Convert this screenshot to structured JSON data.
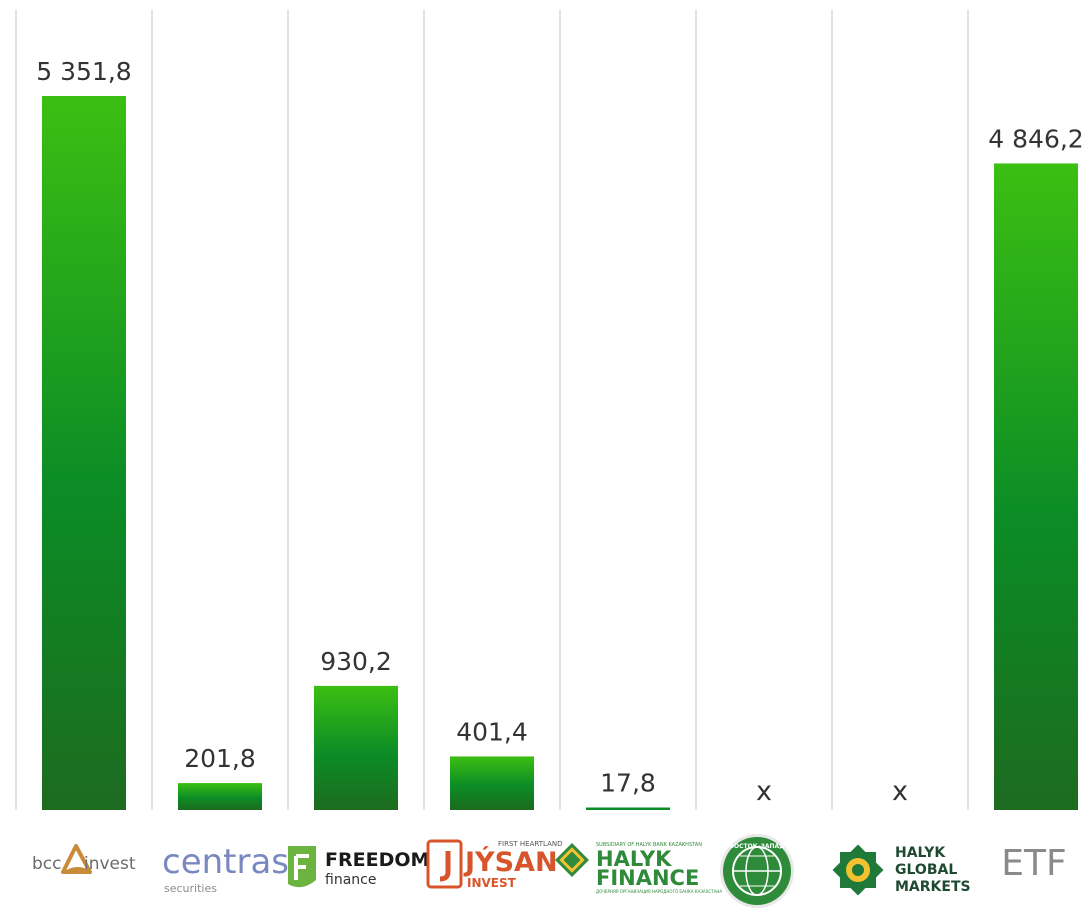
{
  "chart_data": {
    "type": "bar",
    "categories": [
      "bcc invest",
      "centras securities",
      "FREEDOM finance",
      "JYSAN INVEST",
      "HALYK FINANCE",
      "ВОСТОК-ЗАПАД",
      "HALYK GLOBAL MARKETS",
      "ETF"
    ],
    "values": [
      5351.8,
      201.8,
      930.2,
      401.4,
      17.8,
      null,
      null,
      4846.2
    ],
    "value_labels": [
      "5 351,8",
      "201,8",
      "930,2",
      "401,4",
      "17,8",
      "x",
      "x",
      "4 846,2"
    ],
    "ylim": [
      0,
      5900
    ],
    "grid": "vertical separators",
    "legend": "none"
  },
  "colors": {
    "bar_top": "#3cbf12",
    "bar_mid": "#0b8c26",
    "bar_bottom": "#1d6b1f",
    "grid": "#d9d9d9",
    "label": "#333333"
  },
  "logos": {
    "bcc": {
      "left": "bcc",
      "right": "invest",
      "icon": "triangle-logo-icon"
    },
    "centras": {
      "word": "centras",
      "sub": "securities"
    },
    "freedom": {
      "line1": "FREEDOM",
      "line2": "finance",
      "icon": "freedom-f-icon"
    },
    "jysan": {
      "small": "FIRST HEARTLAND",
      "word": "JÝSAN",
      "sub": "INVEST",
      "icon": "jysan-j-icon"
    },
    "halyk_finance": {
      "small": "SUBSIDIARY OF HALYK BANK KAZAKHSTAN",
      "line1": "HALYK",
      "line2": "FINANCE",
      "tagline": "ДОЧЕРНЯЯ ОРГАНИЗАЦИЯ НАРОДНОГО БАНКА КАЗАХСТАНА",
      "icon": "halyk-ornament-icon"
    },
    "vostok_zapad": {
      "word": "ВОСТОК–ЗАПАД",
      "icon": "globe-seal-icon"
    },
    "halyk_global": {
      "line1": "HALYK",
      "line2": "GLOBAL",
      "line3": "MARKETS",
      "icon": "halyk-star-icon"
    },
    "etf": {
      "word": "ETF"
    }
  }
}
